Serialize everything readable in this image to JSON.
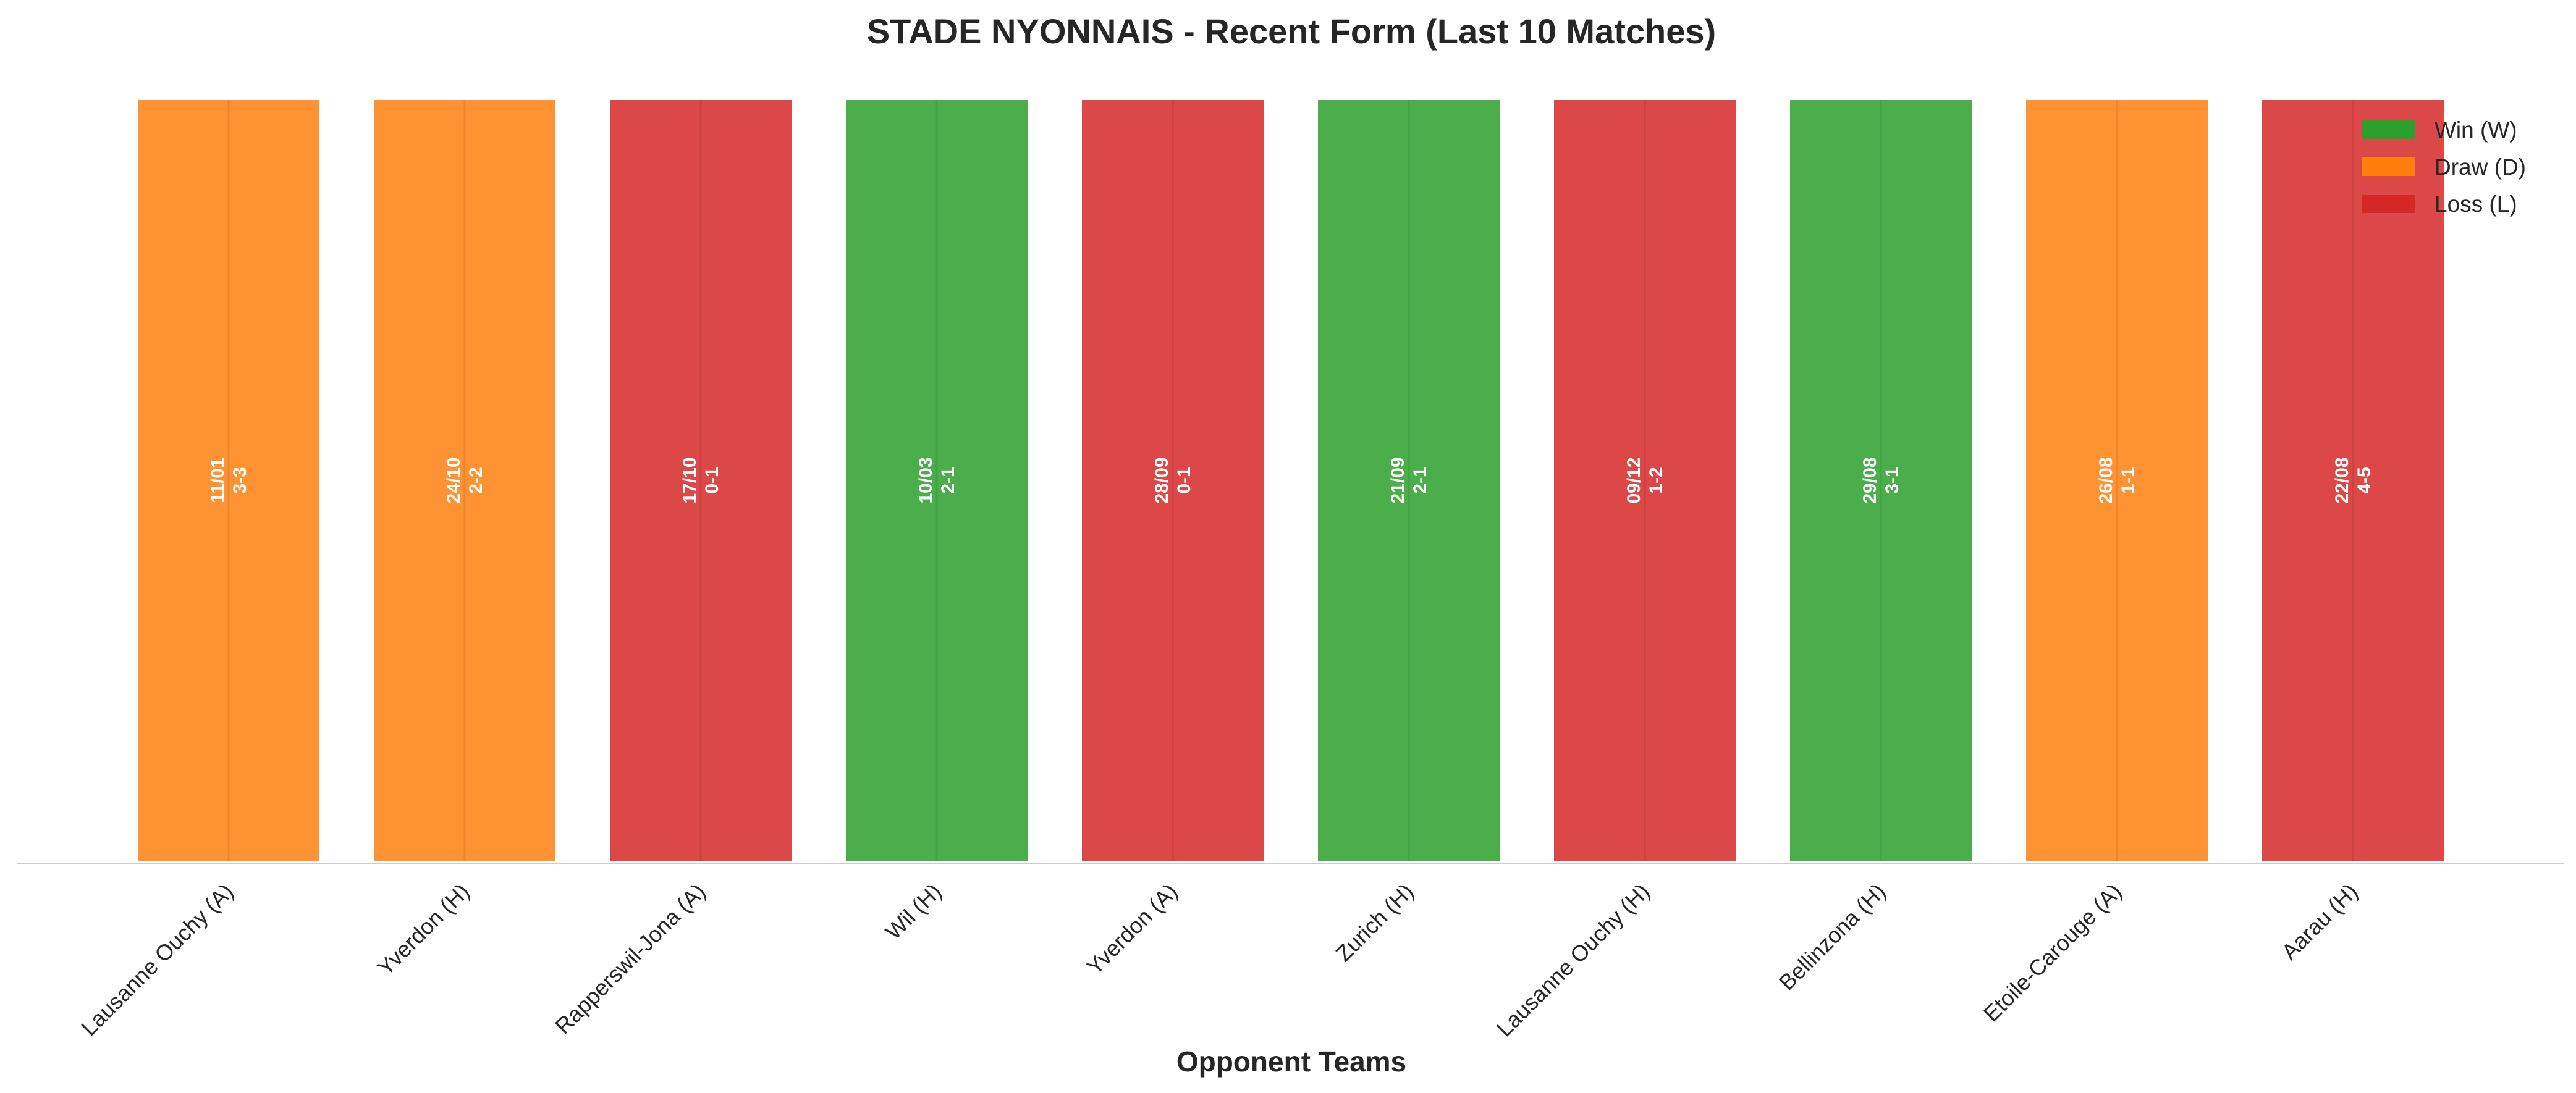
{
  "chart_data": {
    "type": "bar",
    "title": "STADE NYONNAIS - Recent Form (Last 10 Matches)",
    "xlabel": "Opponent Teams",
    "ylabel": "",
    "grid": false,
    "legend_position": "top-right",
    "categories": [
      "Lausanne Ouchy (A)",
      "Yverdon (H)",
      "Rapperswil-Jona (A)",
      "Wil (H)",
      "Yverdon (A)",
      "Zurich (H)",
      "Lausanne Ouchy (H)",
      "Bellinzona (H)",
      "Etoile-Carouge (A)",
      "Aarau (H)"
    ],
    "values": [
      1,
      1,
      1,
      1,
      1,
      1,
      1,
      1,
      1,
      1
    ],
    "results": [
      "D",
      "D",
      "L",
      "W",
      "L",
      "W",
      "L",
      "W",
      "D",
      "L"
    ],
    "dates": [
      "11/01",
      "24/10",
      "17/10",
      "10/03",
      "28/09",
      "21/09",
      "09/12",
      "29/08",
      "26/08",
      "22/08"
    ],
    "scores": [
      "3-3",
      "2-2",
      "0-1",
      "2-1",
      "0-1",
      "2-1",
      "1-2",
      "3-1",
      "1-1",
      "4-5"
    ],
    "legend": [
      {
        "key": "W",
        "label": "Win (W)",
        "color": "#2ca02c"
      },
      {
        "key": "D",
        "label": "Draw (D)",
        "color": "#ff7f0e"
      },
      {
        "key": "L",
        "label": "Loss (L)",
        "color": "#d62728"
      }
    ],
    "ylim": [
      0,
      1
    ]
  }
}
